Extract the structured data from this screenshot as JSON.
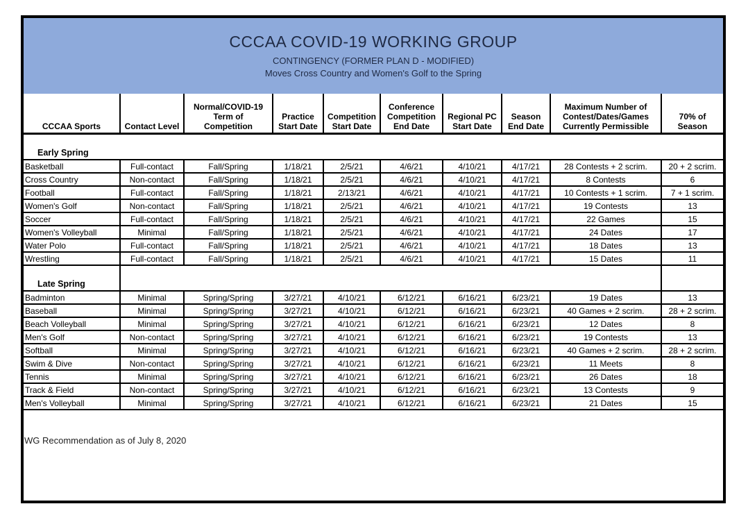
{
  "header": {
    "title": "CCCAA COVID-19 WORKING GROUP",
    "subtitle1": "CONTINGENCY (FORMER PLAN D - MODIFIED)",
    "subtitle2": "Moves Cross Country and Women's Golf to the Spring",
    "band_color": "#8EAADB",
    "band_text_color": "#1F2A44"
  },
  "table": {
    "col_keys": [
      "sport",
      "contact_level",
      "term_of_competition",
      "practice_start_date",
      "competition_start_date",
      "conference_competition_end_date",
      "regional_pc_start_date",
      "season_end_date",
      "max_permissible",
      "seventy_pct_of_season"
    ],
    "columns": [
      {
        "label": "CCCAA Sports"
      },
      {
        "label": "Contact Level"
      },
      {
        "label": "Normal/COVID-19\nTerm of\nCompetition"
      },
      {
        "label": "Practice\nStart Date"
      },
      {
        "label": "Competition\nStart Date"
      },
      {
        "label": "Conference\nCompetition\nEnd Date"
      },
      {
        "label": "Regional PC\nStart Date"
      },
      {
        "label": "Season\nEnd Date"
      },
      {
        "label": "Maximum Number of\nContest/Dates/Games\nCurrently Permissible"
      },
      {
        "label": "70% of\nSeason"
      }
    ],
    "sections": [
      {
        "label": "Early Spring",
        "rows": [
          [
            "Basketball",
            "Full-contact",
            "Fall/Spring",
            "1/18/21",
            "2/5/21",
            "4/6/21",
            "4/10/21",
            "4/17/21",
            "28 Contests + 2 scrim.",
            "20 + 2 scrim."
          ],
          [
            "Cross Country",
            "Non-contact",
            "Fall/Spring",
            "1/18/21",
            "2/5/21",
            "4/6/21",
            "4/10/21",
            "4/17/21",
            "8 Contests",
            "6"
          ],
          [
            "Football",
            "Full-contact",
            "Fall/Spring",
            "1/18/21",
            "2/13/21",
            "4/6/21",
            "4/10/21",
            "4/17/21",
            "10 Contests + 1 scrim.",
            "7 + 1 scrim."
          ],
          [
            "Women's Golf",
            "Non-contact",
            "Fall/Spring",
            "1/18/21",
            "2/5/21",
            "4/6/21",
            "4/10/21",
            "4/17/21",
            "19 Contests",
            "13"
          ],
          [
            "Soccer",
            "Full-contact",
            "Fall/Spring",
            "1/18/21",
            "2/5/21",
            "4/6/21",
            "4/10/21",
            "4/17/21",
            "22 Games",
            "15"
          ],
          [
            "Women's Volleyball",
            "Minimal",
            "Fall/Spring",
            "1/18/21",
            "2/5/21",
            "4/6/21",
            "4/10/21",
            "4/17/21",
            "24 Dates",
            "17"
          ],
          [
            "Water Polo",
            "Full-contact",
            "Fall/Spring",
            "1/18/21",
            "2/5/21",
            "4/6/21",
            "4/10/21",
            "4/17/21",
            "18 Dates",
            "13"
          ],
          [
            "Wrestling",
            "Full-contact",
            "Fall/Spring",
            "1/18/21",
            "2/5/21",
            "4/6/21",
            "4/10/21",
            "4/17/21",
            "15 Dates",
            "11"
          ]
        ]
      },
      {
        "label": "Late Spring",
        "rows": [
          [
            "Badminton",
            "Minimal",
            "Spring/Spring",
            "3/27/21",
            "4/10/21",
            "6/12/21",
            "6/16/21",
            "6/23/21",
            "19 Dates",
            "13"
          ],
          [
            "Baseball",
            "Minimal",
            "Spring/Spring",
            "3/27/21",
            "4/10/21",
            "6/12/21",
            "6/16/21",
            "6/23/21",
            "40 Games + 2 scrim.",
            "28 + 2 scrim."
          ],
          [
            "Beach Volleyball",
            "Minimal",
            "Spring/Spring",
            "3/27/21",
            "4/10/21",
            "6/12/21",
            "6/16/21",
            "6/23/21",
            "12 Dates",
            "8"
          ],
          [
            "Men's Golf",
            "Non-contact",
            "Spring/Spring",
            "3/27/21",
            "4/10/21",
            "6/12/21",
            "6/16/21",
            "6/23/21",
            "19 Contests",
            "13"
          ],
          [
            "Softball",
            "Minimal",
            "Spring/Spring",
            "3/27/21",
            "4/10/21",
            "6/12/21",
            "6/16/21",
            "6/23/21",
            "40 Games + 2 scrim.",
            "28 + 2 scrim."
          ],
          [
            "Swim & Dive",
            "Non-contact",
            "Spring/Spring",
            "3/27/21",
            "4/10/21",
            "6/12/21",
            "6/16/21",
            "6/23/21",
            "11 Meets",
            "8"
          ],
          [
            "Tennis",
            "Minimal",
            "Spring/Spring",
            "3/27/21",
            "4/10/21",
            "6/12/21",
            "6/16/21",
            "6/23/21",
            "26 Dates",
            "18"
          ],
          [
            "Track & Field",
            "Non-contact",
            "Spring/Spring",
            "3/27/21",
            "4/10/21",
            "6/12/21",
            "6/16/21",
            "6/23/21",
            "13 Contests",
            "9"
          ],
          [
            "Men's Volleyball",
            "Minimal",
            "Spring/Spring",
            "3/27/21",
            "4/10/21",
            "6/12/21",
            "6/16/21",
            "6/23/21",
            "21 Dates",
            "15"
          ]
        ]
      }
    ]
  },
  "footer": {
    "note": "WG Recommendation as of July 8, 2020"
  }
}
